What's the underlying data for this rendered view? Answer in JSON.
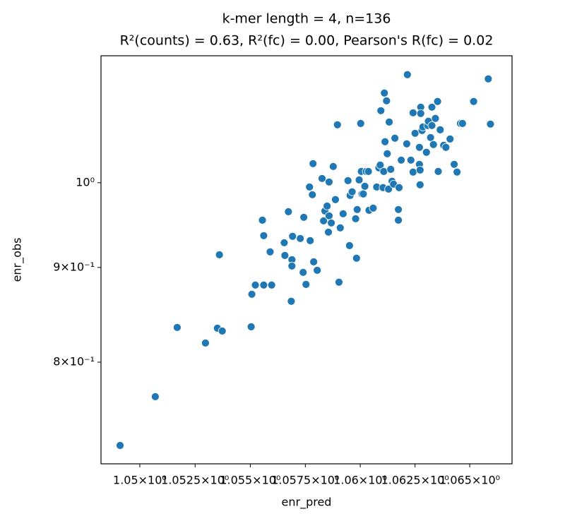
{
  "chart_data": {
    "type": "scatter",
    "title": "k-mer length = 4, n=136",
    "subtitle": "R²(counts) = 0.63, R²(fc) = 0.00, Pearson's R(fc) = 0.02",
    "x_label": "enr_pred",
    "y_label": "enr_obs",
    "xscale": "log",
    "yscale": "log",
    "grid": false,
    "color": "#1f77b4",
    "xlim": [
      1.04825,
      1.06694
    ],
    "ylim": [
      0.705,
      1.171
    ],
    "xticks": [
      {
        "value": 1.05,
        "label": "1.05×10⁰"
      },
      {
        "value": 1.0525,
        "label": "1.0525×10⁰"
      },
      {
        "value": 1.055,
        "label": "1.055×10⁰"
      },
      {
        "value": 1.0575,
        "label": "1.0575×10⁰"
      },
      {
        "value": 1.06,
        "label": "1.06×10⁰"
      },
      {
        "value": 1.0625,
        "label": "1.0625×10⁰"
      },
      {
        "value": 1.065,
        "label": "1.065×10⁰"
      }
    ],
    "yticks": [
      {
        "value": 0.8,
        "label": "8×10⁻¹"
      },
      {
        "value": 0.9,
        "label": "9×10⁻¹"
      },
      {
        "value": 1,
        "label": "10⁰"
      }
    ],
    "x": [
      1.04911,
      1.0507,
      1.05169,
      1.05297,
      1.05351,
      1.05373,
      1.0536,
      1.05504,
      1.05507,
      1.05523,
      1.05561,
      1.05597,
      1.05555,
      1.05561,
      1.0559,
      1.05654,
      1.05657,
      1.05673,
      1.05689,
      1.05689,
      1.05686,
      1.05692,
      1.05727,
      1.0574,
      1.05743,
      1.05753,
      1.05772,
      1.05788,
      1.05804,
      1.05769,
      1.05782,
      1.05785,
      1.05826,
      1.05833,
      1.05839,
      1.05849,
      1.05855,
      1.05858,
      1.05858,
      1.05868,
      1.05877,
      1.05887,
      1.05896,
      1.05903,
      1.05909,
      1.05922,
      1.05951,
      1.05944,
      1.05954,
      1.05963,
      1.05979,
      1.05983,
      1.05986,
      1.05995,
      1.06002,
      1.06005,
      1.06008,
      1.06014,
      1.06021,
      1.06027,
      1.06037,
      1.0604,
      1.06059,
      1.06075,
      1.06085,
      1.06091,
      1.06094,
      1.06104,
      1.06107,
      1.0611,
      1.06113,
      1.0612,
      1.06123,
      1.06129,
      1.06132,
      1.06139,
      1.06145,
      1.06152,
      1.06158,
      1.06174,
      1.06177,
      1.06174,
      1.06187,
      1.06212,
      1.06215,
      1.06231,
      1.06241,
      1.06241,
      1.0625,
      1.0627,
      1.0627,
      1.06273,
      1.06273,
      1.06276,
      1.06276,
      1.06282,
      1.06286,
      1.06302,
      1.06308,
      1.06311,
      1.06321,
      1.06327,
      1.06327,
      1.06334,
      1.06343,
      1.06353,
      1.06356,
      1.06365,
      1.06381,
      1.06391,
      1.0641,
      1.06429,
      1.06442,
      1.06458,
      1.06467,
      1.06518,
      1.06585,
      1.06595
    ],
    "y": [
      0.7213,
      0.7664,
      0.8353,
      0.8193,
      0.8345,
      0.8316,
      0.9143,
      0.836,
      0.8705,
      0.8805,
      0.8805,
      0.8805,
      0.9545,
      0.9363,
      0.9176,
      0.9281,
      0.9135,
      0.9646,
      0.9087,
      0.9016,
      0.8629,
      0.9355,
      0.933,
      0.8945,
      0.9579,
      0.8812,
      0.9305,
      0.9063,
      0.8968,
      0.9947,
      0.9852,
      1.024,
      1.0053,
      0.9537,
      0.9655,
      0.9714,
      0.9404,
      0.9596,
      1.0009,
      0.9512,
      1.0204,
      0.9792,
      1.0747,
      0.8836,
      0.9454,
      0.9621,
      0.9248,
      1.0026,
      0.9843,
      0.9887,
      0.9562,
      0.9104,
      0.9672,
      1.0035,
      1.0765,
      1.0141,
      0.9861,
      0.9861,
      0.9956,
      1.0141,
      1.0141,
      0.9663,
      0.9689,
      0.9947,
      1.0186,
      1.0222,
      1.0937,
      0.9939,
      1.0141,
      1.118,
      1.0523,
      1.1072,
      1.0367,
      0.9921,
      1.0784,
      1.0168,
      1.0018,
      0.9982,
      1.0569,
      0.9672,
      0.9939,
      0.9545,
      1.0285,
      1.0495,
      1.1438,
      1.0285,
      1.0908,
      1.0133,
      1.0634,
      1.0449,
      1.0231,
      1.0159,
      0.9974,
      1.0985,
      1.0899,
      1.0671,
      1.0718,
      1.0385,
      1.0737,
      1.0794,
      1.0578,
      1.0737,
      1.0985,
      1.0486,
      1.0832,
      1.1063,
      1.0141,
      1.068,
      1.0476,
      1.0449,
      1.0559,
      1.0231,
      1.0133,
      1.0765,
      1.0765,
      1.1063,
      1.1378,
      1.0756
    ]
  }
}
